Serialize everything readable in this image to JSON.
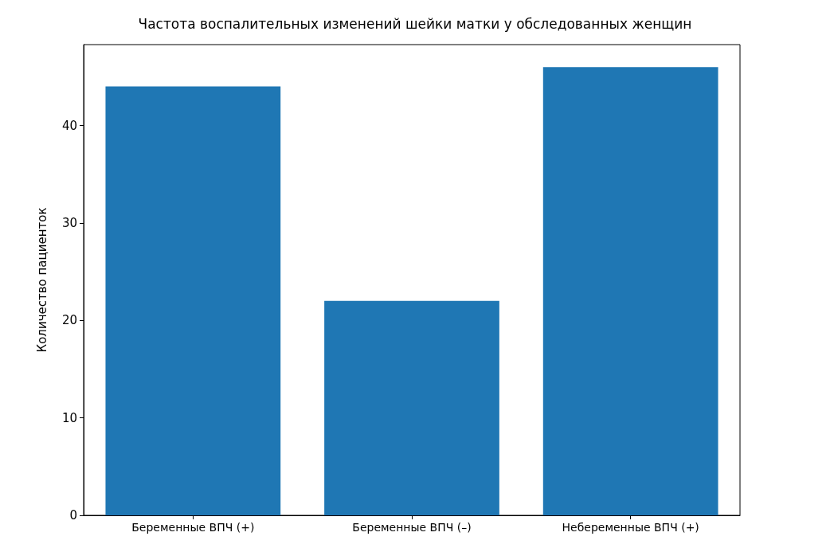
{
  "chart_data": {
    "type": "bar",
    "title": "Частота воспалительных изменений шейки матки у обследованных женщин",
    "ylabel": "Количество пациенток",
    "categories": [
      "Беременные ВПЧ (+)",
      "Беременные ВПЧ (–)",
      "Небеременные ВПЧ (+)"
    ],
    "values": [
      44,
      22,
      46
    ],
    "color": "#1f77b4",
    "ylim": [
      0,
      48.3
    ],
    "yticks": [
      0,
      10,
      20,
      30,
      40
    ],
    "grid": false
  }
}
